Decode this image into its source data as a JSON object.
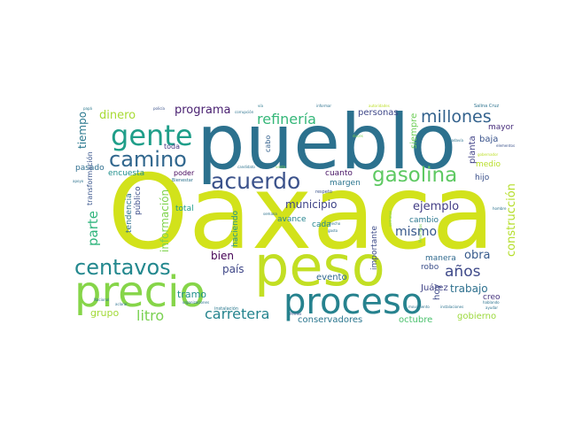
{
  "words": [
    {
      "text": "Oaxaca",
      "color": "#d2e21b"
    },
    {
      "text": "pueblo",
      "color": "#2c718e"
    },
    {
      "text": "peso",
      "color": "#c2df23"
    },
    {
      "text": "precio",
      "color": "#86d549"
    },
    {
      "text": "proceso",
      "color": "#26828e"
    },
    {
      "text": "gente",
      "color": "#1f9e89"
    },
    {
      "text": "centavos",
      "color": "#23888e"
    },
    {
      "text": "camino",
      "color": "#31678e"
    },
    {
      "text": "acuerdo",
      "color": "#3b528b"
    },
    {
      "text": "gasolina",
      "color": "#5ec962"
    },
    {
      "text": "millones",
      "color": "#33628d"
    },
    {
      "text": "refinería",
      "color": "#35b779"
    },
    {
      "text": "carretera",
      "color": "#25848e"
    },
    {
      "text": "litro",
      "color": "#7ad151"
    },
    {
      "text": "dinero",
      "color": "#a8db34"
    },
    {
      "text": "programa",
      "color": "#481f70"
    },
    {
      "text": "parte",
      "color": "#2fb47c"
    },
    {
      "text": "construcción",
      "color": "#b5de2b"
    },
    {
      "text": "años",
      "color": "#3e4989"
    },
    {
      "text": "ejemplo",
      "color": "#433e85"
    },
    {
      "text": "mismo",
      "color": "#38598c"
    },
    {
      "text": "obra",
      "color": "#375a8c"
    },
    {
      "text": "trabajo",
      "color": "#2d708e"
    },
    {
      "text": "tiempo",
      "color": "#2a788e"
    },
    {
      "text": "información",
      "color": "#7fd34e"
    },
    {
      "text": "municipio",
      "color": "#404588"
    },
    {
      "text": "país",
      "color": "#3f4788"
    },
    {
      "text": "bien",
      "color": "#440154"
    },
    {
      "text": "grupo",
      "color": "#a2da37"
    },
    {
      "text": "tramo",
      "color": "#21918c"
    },
    {
      "text": "evento",
      "color": "#31688e"
    },
    {
      "text": "conservadores",
      "color": "#2a768e"
    },
    {
      "text": "octubre",
      "color": "#4ac16d"
    },
    {
      "text": "gobierno",
      "color": "#9bd93c"
    },
    {
      "text": "hoy",
      "color": "#3e4a89"
    },
    {
      "text": "Juárez",
      "color": "#414487"
    },
    {
      "text": "robo",
      "color": "#3c4f8a"
    },
    {
      "text": "creo",
      "color": "#46337e"
    },
    {
      "text": "personas",
      "color": "#3f4889"
    },
    {
      "text": "planta",
      "color": "#414287"
    },
    {
      "text": "siempre",
      "color": "#6ece58"
    },
    {
      "text": "baja",
      "color": "#3a548c"
    },
    {
      "text": "mayor",
      "color": "#472d7b"
    },
    {
      "text": "medio",
      "color": "#b8de29"
    },
    {
      "text": "hijo",
      "color": "#3b518b"
    },
    {
      "text": "manera",
      "color": "#306a8e"
    },
    {
      "text": "cambio",
      "color": "#2a778e"
    },
    {
      "text": "importante",
      "color": "#3e4c8a"
    },
    {
      "text": "margen",
      "color": "#2b758e"
    },
    {
      "text": "cuanto",
      "color": "#471365"
    },
    {
      "text": "cada",
      "color": "#25858e"
    },
    {
      "text": "cabo",
      "color": "#34618d"
    },
    {
      "text": "total",
      "color": "#1e9b8a"
    },
    {
      "text": "poder",
      "color": "#46085c"
    },
    {
      "text": "encuesta",
      "color": "#21908d"
    },
    {
      "text": "toda",
      "color": "#453781"
    },
    {
      "text": "pasado",
      "color": "#2e6e8e"
    },
    {
      "text": "transformación",
      "color": "#39558c"
    },
    {
      "text": "tendencia",
      "color": "#2d708e"
    },
    {
      "text": "público",
      "color": "#3d4e8a"
    },
    {
      "text": "haciendo",
      "color": "#1f958b"
    },
    {
      "text": "avance",
      "color": "#25848e"
    },
    {
      "text": "instalación",
      "color": "#2a788e"
    },
    {
      "text": "Bienestar",
      "color": "#2c728e"
    },
    {
      "text": "respeto",
      "color": "#3b528b"
    },
    {
      "text": "Salina Cruz",
      "color": "#2c728e"
    },
    {
      "text": "papá",
      "color": "#2a788e"
    },
    {
      "text": "policía",
      "color": "#3b528b"
    },
    {
      "text": "corrupción",
      "color": "#2c728e"
    },
    {
      "text": "vía",
      "color": "#2a788e"
    },
    {
      "text": "informar",
      "color": "#2c718e"
    },
    {
      "text": "autoridades",
      "color": "#bddf26"
    },
    {
      "text": "gobernador",
      "color": "#bddf26"
    },
    {
      "text": "elementos",
      "color": "#3b528b"
    },
    {
      "text": "todavía",
      "color": "#2c728e"
    },
    {
      "text": "duces",
      "color": "#7ad151"
    },
    {
      "text": "candidato",
      "color": "#2c728e"
    },
    {
      "text": "venta",
      "color": "#7ad151"
    },
    {
      "text": "apoyo",
      "color": "#2c728e"
    },
    {
      "text": "semana",
      "color": "#2c728e"
    },
    {
      "text": "hecho",
      "color": "#2c728e"
    },
    {
      "text": "gasto",
      "color": "#2c728e"
    },
    {
      "text": "Nacional",
      "color": "#2c728e"
    },
    {
      "text": "organizaciones",
      "color": "#2c728e"
    },
    {
      "text": "aclarar",
      "color": "#2c728e"
    },
    {
      "text": "Pemex",
      "color": "#3b528b"
    },
    {
      "text": "movimiento",
      "color": "#2c728e"
    },
    {
      "text": "instalaciones",
      "color": "#2c728e"
    },
    {
      "text": "ayudar",
      "color": "#2c728e"
    },
    {
      "text": "hablando",
      "color": "#2c728e"
    },
    {
      "text": "Mexicanos",
      "color": "#7ad151"
    },
    {
      "text": "hombre",
      "color": "#2c728e"
    },
    {
      "text": "semanas",
      "color": "#7ad151"
    }
  ]
}
